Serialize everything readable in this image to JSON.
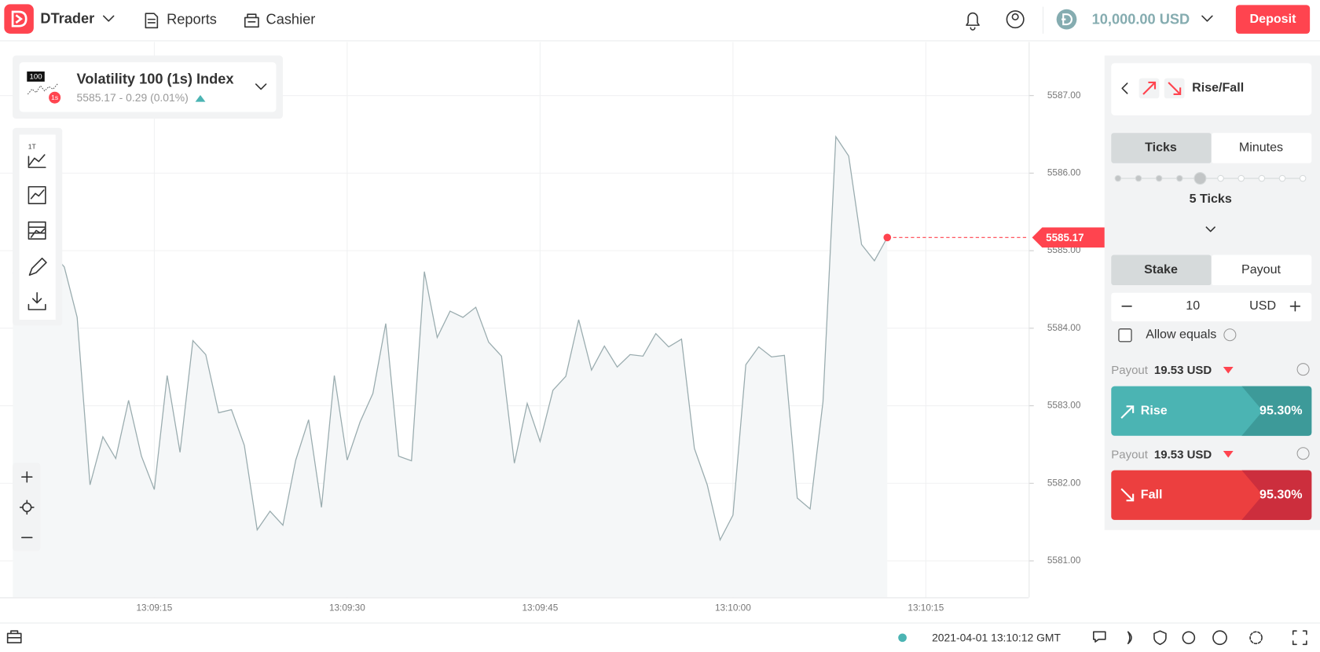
{
  "header": {
    "app": "DTrader",
    "nav": [
      "Reports",
      "Cashier"
    ],
    "balance": "10,000.00 USD",
    "deposit": "Deposit"
  },
  "symbol": {
    "name": "Volatility 100 (1s) Index",
    "quote": "5585.17 - 0.29 (0.01%)",
    "icon_labels": [
      "100",
      "1s"
    ]
  },
  "toolbar": {
    "chart_type": "1T"
  },
  "chart_data": {
    "type": "line",
    "color": "#9aacaf",
    "grid": true,
    "x": [
      "13:09:04",
      "13:09:05",
      "13:09:06",
      "13:09:07",
      "13:09:08",
      "13:09:09",
      "13:09:10",
      "13:09:11",
      "13:09:12",
      "13:09:13",
      "13:09:14",
      "13:09:15",
      "13:09:16",
      "13:09:17",
      "13:09:18",
      "13:09:19",
      "13:09:20",
      "13:09:21",
      "13:09:22",
      "13:09:23",
      "13:09:24",
      "13:09:25",
      "13:09:26",
      "13:09:27",
      "13:09:28",
      "13:09:29",
      "13:09:30",
      "13:09:31",
      "13:09:32",
      "13:09:33",
      "13:09:34",
      "13:09:35",
      "13:09:36",
      "13:09:37",
      "13:09:38",
      "13:09:39",
      "13:09:40",
      "13:09:41",
      "13:09:42",
      "13:09:43",
      "13:09:44",
      "13:09:45",
      "13:09:46",
      "13:09:47",
      "13:09:48",
      "13:09:49",
      "13:09:50",
      "13:09:51",
      "13:09:52",
      "13:09:53",
      "13:09:54",
      "13:09:55",
      "13:09:56",
      "13:09:57",
      "13:09:58",
      "13:09:59",
      "13:10:00",
      "13:10:01",
      "13:10:02",
      "13:10:03",
      "13:10:04",
      "13:10:05",
      "13:10:06",
      "13:10:07",
      "13:10:08",
      "13:10:09",
      "13:10:10",
      "13:10:11",
      "13:10:12"
    ],
    "values": [
      5584.71,
      5584.98,
      5585.09,
      5584.98,
      5584.79,
      5584.14,
      5581.98,
      5582.6,
      5582.32,
      5583.07,
      5582.35,
      5581.92,
      5583.39,
      5582.4,
      5583.84,
      5583.66,
      5582.91,
      5582.95,
      5582.49,
      5581.4,
      5581.64,
      5581.46,
      5582.3,
      5582.82,
      5581.69,
      5583.39,
      5582.3,
      5582.79,
      5583.16,
      5584.06,
      5582.35,
      5582.29,
      5584.73,
      5583.88,
      5584.22,
      5584.14,
      5584.27,
      5583.82,
      5583.64,
      5582.26,
      5583.03,
      5582.54,
      5583.2,
      5583.38,
      5584.11,
      5583.46,
      5583.77,
      5583.5,
      5583.66,
      5583.64,
      5583.93,
      5583.76,
      5583.86,
      5582.45,
      5581.98,
      5581.27,
      5581.59,
      5583.53,
      5583.76,
      5583.63,
      5583.65,
      5581.81,
      5581.67,
      5583.05,
      5586.47,
      5586.22,
      5585.08,
      5584.87,
      5585.17
    ],
    "xlim": [
      "13:09:03",
      "13:10:23"
    ],
    "xticks": [
      "13:09:15",
      "13:09:30",
      "13:09:45",
      "13:10:00",
      "13:10:15"
    ],
    "ylim": [
      5580.53,
      5587.69
    ],
    "yticks": [
      {
        "value": 5581,
        "label": "5581.00"
      },
      {
        "value": 5582,
        "label": "5582.00"
      },
      {
        "value": 5583,
        "label": "5583.00"
      },
      {
        "value": 5584,
        "label": "5584.00"
      },
      {
        "value": 5585,
        "label": "5585.00"
      },
      {
        "value": 5586,
        "label": "5586.00"
      },
      {
        "value": 5587,
        "label": "5587.00"
      }
    ]
  },
  "trade": {
    "trade_type": "Rise/Fall",
    "duration_tabs": [
      "Ticks",
      "Minutes"
    ],
    "duration": "5 Ticks",
    "amount_tabs": [
      "Stake",
      "Payout"
    ],
    "stake": 10,
    "currency": "USD",
    "allow_equals": "Allow equals",
    "contracts": [
      {
        "payout_label": "Payout",
        "payout": "19.53 USD",
        "name": "Rise",
        "percent": "95.30%"
      },
      {
        "payout_label": "Payout",
        "payout": "19.53 USD",
        "name": "Fall",
        "percent": "95.30%"
      }
    ]
  },
  "footer": {
    "time": "2021-04-01 13:10:12 GMT"
  }
}
